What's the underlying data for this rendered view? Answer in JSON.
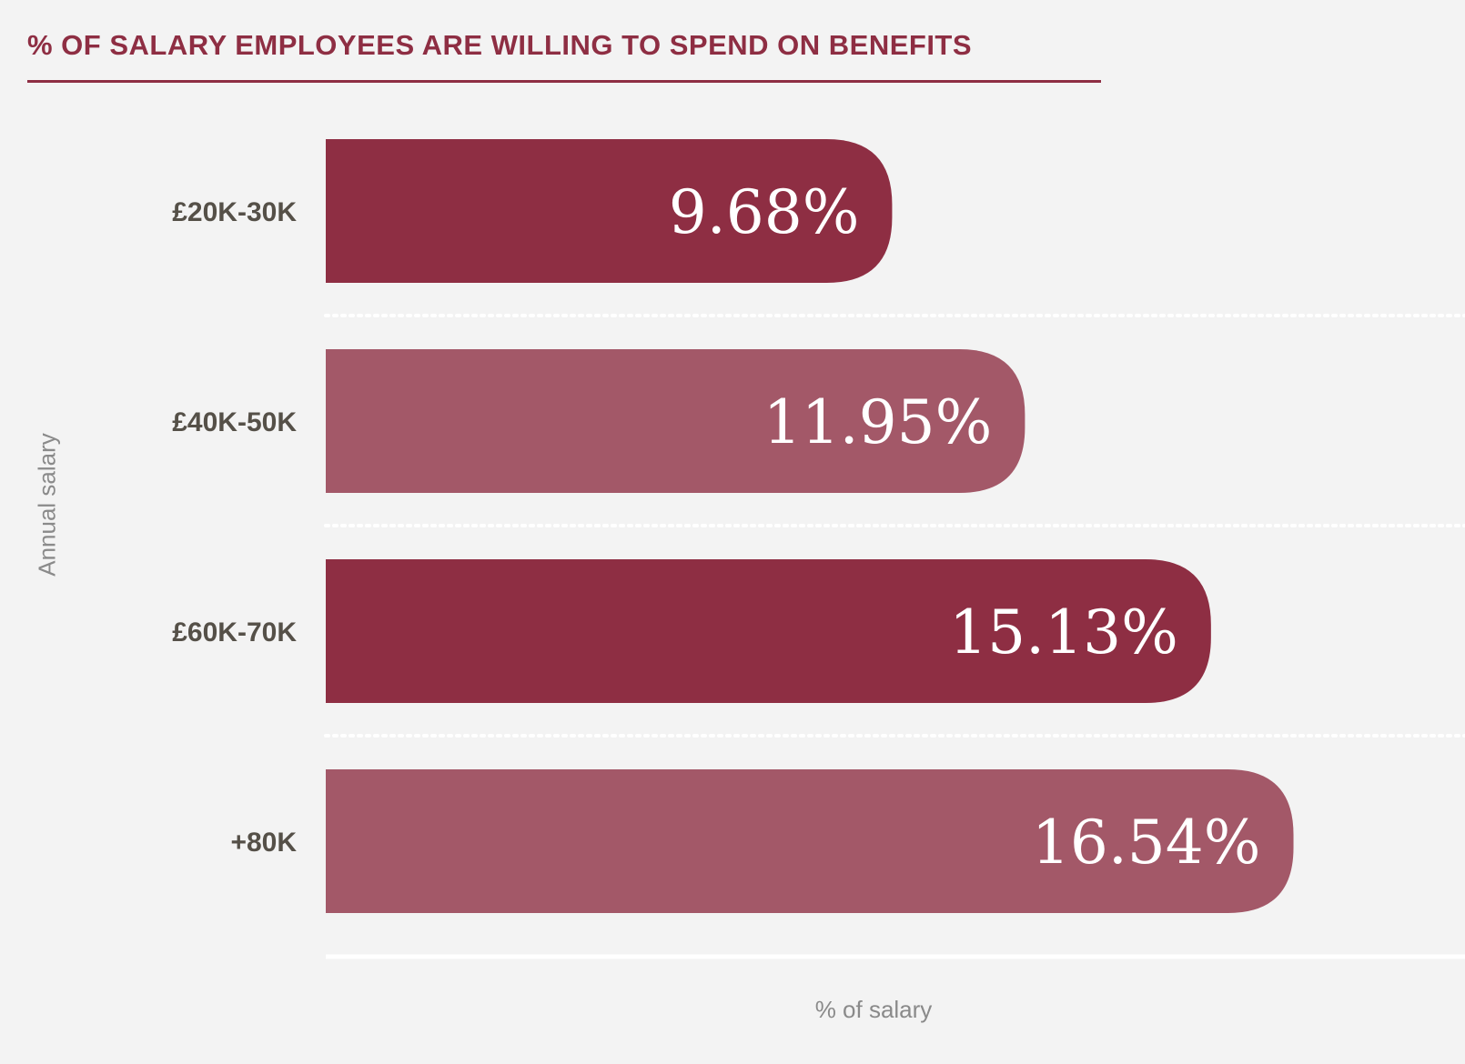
{
  "title": "% OF SALARY EMPLOYEES ARE WILLING TO SPEND ON BENEFITS",
  "colors": {
    "background": "#f3f3f3",
    "title": "#8e2e43",
    "bar_dark": "#8e2e43",
    "bar_light": "#a35868",
    "category_text": "#555048",
    "axis_text": "#8a8a8a"
  },
  "chart_data": {
    "type": "bar",
    "orientation": "horizontal",
    "title": "% OF SALARY EMPLOYEES ARE WILLING TO SPEND ON BENEFITS",
    "xlabel": "% of salary",
    "ylabel": "Annual salary",
    "categories": [
      "£20K-30K",
      "£40K-50K",
      "£60K-70K",
      "+80K"
    ],
    "values": [
      9.68,
      11.95,
      15.13,
      16.54
    ],
    "value_labels": [
      "9.68%",
      "11.95%",
      "15.13%",
      "16.54%"
    ],
    "xlim": [
      0,
      18
    ],
    "grid": false,
    "legend": "none"
  }
}
